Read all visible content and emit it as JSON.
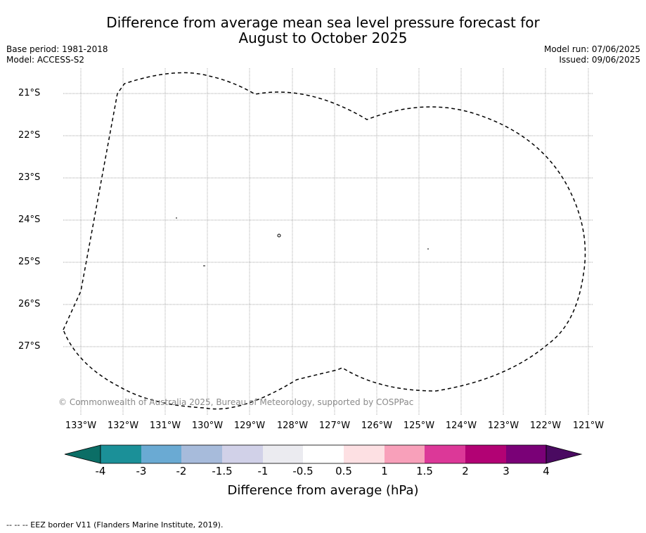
{
  "title": {
    "line1": "Difference from average mean sea level pressure forecast for",
    "line2": "August to October 2025"
  },
  "meta_left": {
    "base_period": "Base period: 1981-2018",
    "model": "Model: ACCESS-S2"
  },
  "meta_right": {
    "model_run": "Model run: 07/06/2025",
    "issued": "Issued: 09/06/2025"
  },
  "map": {
    "lat_labels": [
      "21°S",
      "22°S",
      "23°S",
      "24°S",
      "25°S",
      "26°S",
      "27°S"
    ],
    "lon_labels": [
      "133°W",
      "132°W",
      "131°W",
      "130°W",
      "129°W",
      "128°W",
      "127°W",
      "126°W",
      "125°W",
      "124°W",
      "123°W",
      "122°W",
      "121°W"
    ],
    "copyright": "© Commonwealth of Australia 2025, Bureau of Meteorology, supported by COSPPac",
    "border_style": "dashed",
    "grid": true
  },
  "colorbar": {
    "ticks": [
      "-4",
      "-3",
      "-2",
      "-1.5",
      "-1",
      "-0.5",
      "0.5",
      "1",
      "1.5",
      "2",
      "3",
      "4"
    ],
    "colors": [
      "#0b6e66",
      "#1b9098",
      "#6aaad3",
      "#a7bbdb",
      "#d1d1e8",
      "#ebebf0",
      "#ffffff",
      "#fde0e3",
      "#f8a0ba",
      "#dc3898",
      "#b20274",
      "#7a0177",
      "#4a0a61"
    ],
    "label": "Difference from average (hPa)"
  },
  "footer": {
    "legend": "--  --  -- EEZ border V11 (Flanders Marine Institute, 2019)."
  }
}
